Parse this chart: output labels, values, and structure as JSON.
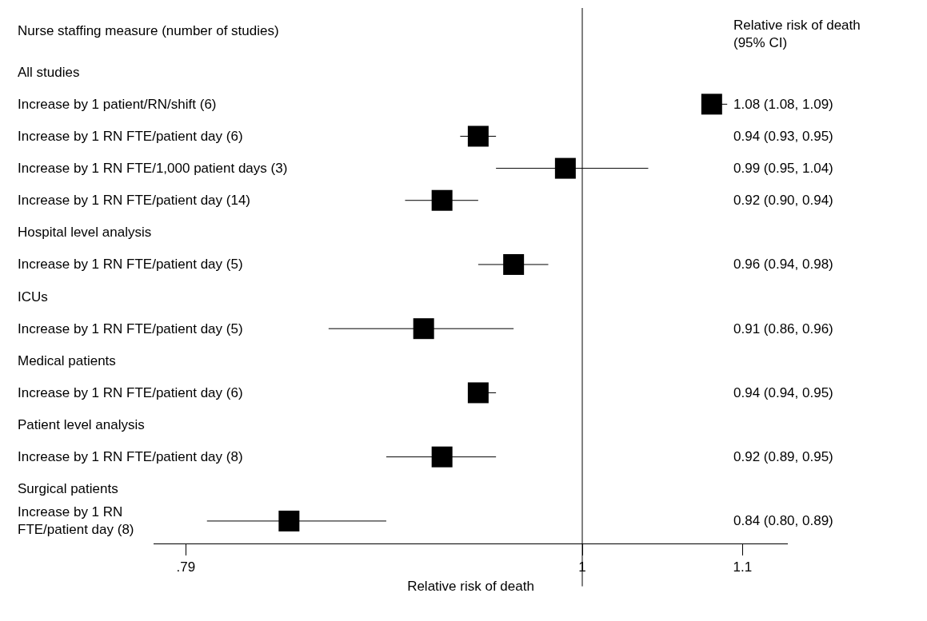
{
  "chart_data": {
    "type": "scatter",
    "orientation": "horizontal",
    "log": "x",
    "marker": "square",
    "ylabel": "Nurse staffing measure (number of studies)",
    "xlabel": "Relative risk of death",
    "categories": [
      "All studies",
      "Increase by 1 patient/RN/shift (6)",
      "Increase by 1 RN FTE/patient day (6)",
      "Increase by 1 RN FTE/1,000 patient days (3)",
      "Increase by 1 RN FTE/patient day (14)",
      "Hospital level analysis",
      "Increase by 1 RN FTE/patient day (5)",
      "ICUs",
      "Increase by 1 RN FTE/patient day (5)",
      "Medical patients",
      "Increase by 1 RN FTE/patient day (6)",
      "Patient level analysis",
      "Increase by 1 RN FTE/patient day (8)",
      "Surgical patients",
      "Increase by 1 RN FTE/patient day (8)"
    ],
    "series": [
      {
        "color": "#000000",
        "values": [
          null,
          1.08,
          0.94,
          0.99,
          0.92,
          null,
          0.96,
          null,
          0.91,
          null,
          0.94,
          null,
          0.92,
          null,
          0.84
        ],
        "errors": [
          null,
          [
            1.08,
            1.09
          ],
          [
            0.93,
            0.95
          ],
          [
            0.95,
            1.04
          ],
          [
            0.9,
            0.94
          ],
          null,
          [
            0.94,
            0.98
          ],
          null,
          [
            0.86,
            0.96
          ],
          null,
          [
            0.94,
            0.95
          ],
          null,
          [
            0.89,
            0.95
          ],
          null,
          [
            0.8,
            0.89
          ]
        ]
      }
    ],
    "xlim": [
      0.775,
      1.13
    ],
    "xticks": [
      {
        "value": 0.79,
        "label": ".79"
      },
      1,
      1.1
    ],
    "ref_lines": [
      {
        "axis": "x",
        "value": 1,
        "label": null,
        "color": "#000000"
      }
    ],
    "annotations": [
      "Relative risk of death\n(95% CI)",
      "1.08 (1.08, 1.09)",
      "0.94 (0.93, 0.95)",
      "0.99 (0.95, 1.04)",
      "0.92 (0.90, 0.94)",
      "0.96 (0.94, 0.98)",
      "0.91 (0.86, 0.96)",
      "0.94 (0.94, 0.95)",
      "0.92 (0.89, 0.95)",
      "0.84 (0.80, 0.89)"
    ],
    "legend": false
  }
}
